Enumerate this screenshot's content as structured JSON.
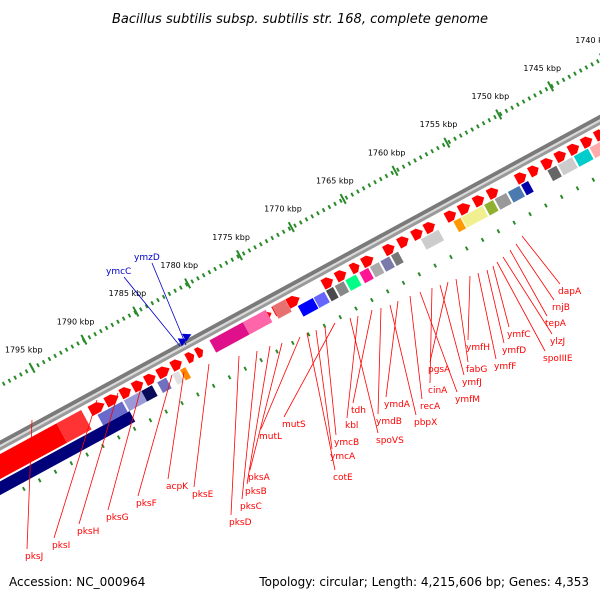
{
  "header": {
    "title": "Bacillus subtilis subsp. subtilis str. 168, complete genome"
  },
  "footer": {
    "accession": "Accession: NC_000964",
    "topology": "Topology: circular; Length: 4,215,606 bp; Genes: 4,353"
  },
  "colors": {
    "forward_gene": "#ff0000",
    "label_red": "#ff0000",
    "label_blue": "#0000cc",
    "ruler_tick": "#2a8a2a",
    "backbone": "#7a7a7a",
    "reverse_track": "#00007a"
  },
  "ruler": {
    "unit": "kbp",
    "ticks": [
      {
        "label": "1740 kbp",
        "kbp": 1740
      },
      {
        "label": "1745 kbp",
        "kbp": 1745
      },
      {
        "label": "1750 kbp",
        "kbp": 1750
      },
      {
        "label": "1755 kbp",
        "kbp": 1755
      },
      {
        "label": "1760 kbp",
        "kbp": 1760
      },
      {
        "label": "1765 kbp",
        "kbp": 1765
      },
      {
        "label": "1770 kbp",
        "kbp": 1770
      },
      {
        "label": "1775 kbp",
        "kbp": 1775
      },
      {
        "label": "1780 kbp",
        "kbp": 1780
      },
      {
        "label": "1785 kbp",
        "kbp": 1785
      },
      {
        "label": "1790 kbp",
        "kbp": 1790
      },
      {
        "label": "1795 kbp",
        "kbp": 1795
      }
    ]
  },
  "genes_outer": [
    {
      "label": "ymzD",
      "color": "#0000cc"
    },
    {
      "label": "ymcC",
      "color": "#0000cc"
    }
  ],
  "genes_inner": [
    {
      "label": "dapA"
    },
    {
      "label": "rnjB"
    },
    {
      "label": "tepA"
    },
    {
      "label": "ylzJ"
    },
    {
      "label": "spoIIIE"
    },
    {
      "label": "ymfC"
    },
    {
      "label": "ymfD"
    },
    {
      "label": "ymfH"
    },
    {
      "label": "ymfF"
    },
    {
      "label": "pgsA"
    },
    {
      "label": "fabG"
    },
    {
      "label": "ymfJ"
    },
    {
      "label": "cinA"
    },
    {
      "label": "ymfM"
    },
    {
      "label": "recA"
    },
    {
      "label": "ymdA"
    },
    {
      "label": "pbpX"
    },
    {
      "label": "tdh"
    },
    {
      "label": "ymdB"
    },
    {
      "label": "kbl"
    },
    {
      "label": "spoVS"
    },
    {
      "label": "mutS"
    },
    {
      "label": "ymcB"
    },
    {
      "label": "mutL"
    },
    {
      "label": "ymcA"
    },
    {
      "label": "cotE"
    },
    {
      "label": "pksA"
    },
    {
      "label": "pksB"
    },
    {
      "label": "pksC"
    },
    {
      "label": "pksD"
    },
    {
      "label": "pksE"
    },
    {
      "label": "acpK"
    },
    {
      "label": "pksF"
    },
    {
      "label": "pksG"
    },
    {
      "label": "pksH"
    },
    {
      "label": "pksI"
    },
    {
      "label": "pksJ"
    }
  ]
}
